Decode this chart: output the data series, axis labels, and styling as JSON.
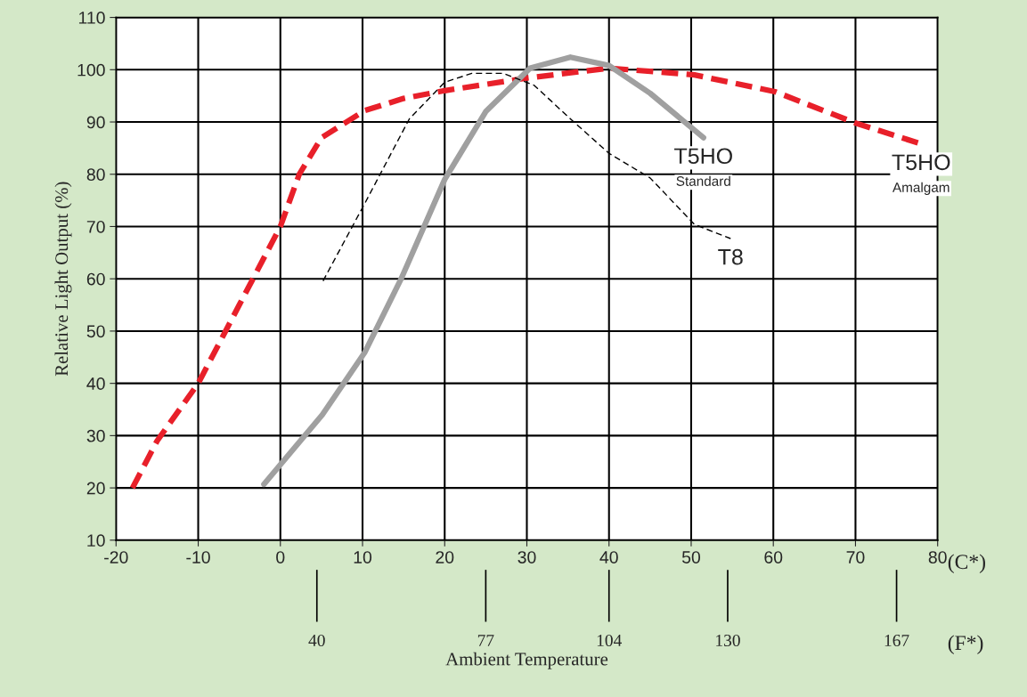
{
  "chart_data": {
    "type": "line",
    "xlabel": "Ambient Temperature",
    "ylabel": "Relative Light Output (%)",
    "xlim": [
      -20,
      80
    ],
    "xticks": [
      -20,
      -10,
      0,
      10,
      20,
      30,
      40,
      50,
      60,
      70,
      80
    ],
    "ylim": [
      10,
      110
    ],
    "yticks": [
      10,
      20,
      30,
      40,
      50,
      60,
      70,
      80,
      90,
      100,
      110
    ],
    "x2lim": [
      -4,
      176
    ],
    "x2ticks": [
      40,
      77,
      104,
      130,
      167
    ],
    "grid": true,
    "annotations": [
      "(C*)",
      "(F*)"
    ],
    "series": [
      {
        "name": "T5HO Amalgam",
        "color": "#e8202a",
        "line_style": "dashed",
        "x": [
          -18,
          -15,
          -10,
          -5,
          0,
          2.3,
          5,
          10.3,
          15,
          20,
          30,
          40,
          50.4,
          60.2,
          70,
          78
        ],
        "values": [
          20,
          29,
          40,
          55,
          70,
          80,
          87,
          92.2,
          94.5,
          96,
          98.4,
          100.3,
          99,
          95.8,
          89.8,
          85.8
        ]
      },
      {
        "name": "T5HO Standard",
        "color": "#a0a0a0",
        "line_style": "solid",
        "x": [
          -2,
          5.1,
          10.3,
          14.7,
          20,
          25,
          30.4,
          35.3,
          40,
          45,
          51.5
        ],
        "values": [
          20.7,
          34,
          46,
          60,
          79,
          92,
          100.3,
          102.4,
          100.8,
          95.5,
          87
        ]
      },
      {
        "name": "T8",
        "color": "#000000",
        "line_style": "dashed",
        "x": [
          5.2,
          10.3,
          15.7,
          20,
          23.3,
          27.1,
          30.9,
          35.3,
          40,
          45,
          50.4,
          54.8
        ],
        "values": [
          59.6,
          74.5,
          90.6,
          97.6,
          99.3,
          99.3,
          97,
          90.6,
          84,
          79.3,
          70.4,
          67.7
        ]
      }
    ]
  }
}
